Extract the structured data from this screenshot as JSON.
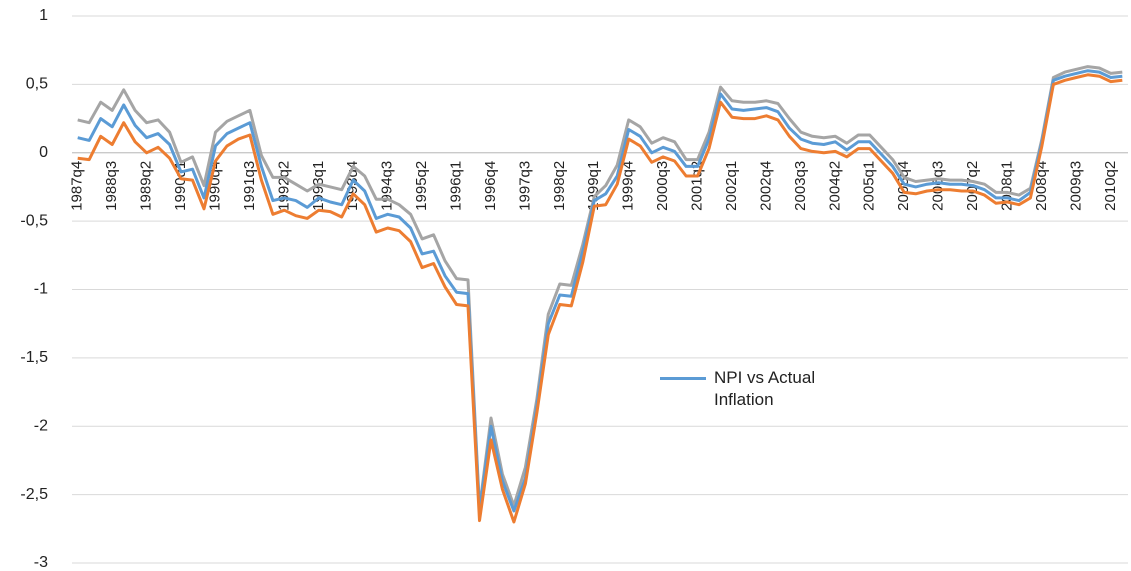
{
  "chart_data": {
    "type": "line",
    "categories": [
      "1987q4",
      null,
      null,
      "1988q3",
      null,
      null,
      "1989q2",
      null,
      null,
      "1990q1",
      null,
      null,
      "1990q4",
      null,
      null,
      "1991q3",
      null,
      null,
      "1992q2",
      null,
      null,
      "1993q1",
      null,
      null,
      "1993q4",
      null,
      null,
      "1994q3",
      null,
      null,
      "1995q2",
      null,
      null,
      "1996q1",
      null,
      null,
      "1996q4",
      null,
      null,
      "1997q3",
      null,
      null,
      "1998q2",
      null,
      null,
      "1999q1",
      null,
      null,
      "1999q4",
      null,
      null,
      "2000q3",
      null,
      null,
      "2001q2",
      null,
      null,
      "2002q1",
      null,
      null,
      "2002q4",
      null,
      null,
      "2003q3",
      null,
      null,
      "2004q2",
      null,
      null,
      "2005q1",
      null,
      null,
      "2005q4",
      null,
      null,
      "2006q3",
      null,
      null,
      "2007q2",
      null,
      null,
      "2008q1",
      null,
      null,
      "2008q4",
      null,
      null,
      "2009q3",
      null,
      null,
      "2010q2",
      null
    ],
    "series": [
      {
        "color": "#a5a5a5",
        "values": [
          0.24,
          0.22,
          0.37,
          0.31,
          0.46,
          0.31,
          0.22,
          0.24,
          0.15,
          -0.07,
          -0.03,
          -0.24,
          0.15,
          0.23,
          0.27,
          0.31,
          -0.02,
          -0.18,
          -0.18,
          -0.23,
          -0.28,
          -0.23,
          -0.25,
          -0.27,
          -0.1,
          -0.17,
          -0.34,
          -0.34,
          -0.38,
          -0.45,
          -0.63,
          -0.6,
          -0.79,
          -0.92,
          -0.93,
          -2.6,
          -1.94,
          -2.35,
          -2.58,
          -2.3,
          -1.8,
          -1.18,
          -0.96,
          -0.97,
          -0.67,
          -0.32,
          -0.24,
          -0.09,
          0.24,
          0.19,
          0.07,
          0.11,
          0.08,
          -0.05,
          -0.05,
          0.15,
          0.48,
          0.38,
          0.37,
          0.37,
          0.38,
          0.36,
          0.25,
          0.15,
          0.12,
          0.11,
          0.12,
          0.07,
          0.13,
          0.13,
          0.04,
          -0.05,
          -0.18,
          -0.21,
          -0.2,
          -0.19,
          -0.2,
          -0.2,
          -0.21,
          -0.23,
          -0.29,
          -0.29,
          -0.31,
          -0.26,
          0.1,
          0.55,
          0.59,
          0.61,
          0.63,
          0.62,
          0.58,
          0.59
        ]
      },
      {
        "name": "NPI vs Actual Inflation",
        "color": "#5b9bd5",
        "values": [
          0.11,
          0.09,
          0.25,
          0.19,
          0.35,
          0.2,
          0.11,
          0.14,
          0.06,
          -0.14,
          -0.12,
          -0.33,
          0.05,
          0.14,
          0.18,
          0.22,
          -0.1,
          -0.35,
          -0.33,
          -0.35,
          -0.4,
          -0.33,
          -0.36,
          -0.38,
          -0.2,
          -0.28,
          -0.48,
          -0.45,
          -0.47,
          -0.55,
          -0.74,
          -0.72,
          -0.9,
          -1.02,
          -1.03,
          -2.62,
          -2.0,
          -2.4,
          -2.62,
          -2.38,
          -1.85,
          -1.25,
          -1.04,
          -1.05,
          -0.72,
          -0.35,
          -0.3,
          -0.17,
          0.17,
          0.12,
          0.0,
          0.04,
          0.01,
          -0.1,
          -0.1,
          0.1,
          0.43,
          0.32,
          0.31,
          0.32,
          0.33,
          0.3,
          0.18,
          0.1,
          0.07,
          0.06,
          0.08,
          0.02,
          0.08,
          0.08,
          -0.01,
          -0.1,
          -0.23,
          -0.25,
          -0.23,
          -0.22,
          -0.23,
          -0.23,
          -0.24,
          -0.27,
          -0.33,
          -0.33,
          -0.35,
          -0.29,
          0.08,
          0.53,
          0.56,
          0.58,
          0.6,
          0.59,
          0.55,
          0.56
        ]
      },
      {
        "color": "#ed7d31",
        "values": [
          -0.04,
          -0.05,
          0.12,
          0.06,
          0.22,
          0.08,
          0.0,
          0.04,
          -0.04,
          -0.19,
          -0.2,
          -0.41,
          -0.06,
          0.05,
          0.1,
          0.13,
          -0.2,
          -0.45,
          -0.42,
          -0.46,
          -0.48,
          -0.42,
          -0.43,
          -0.47,
          -0.3,
          -0.38,
          -0.58,
          -0.55,
          -0.57,
          -0.65,
          -0.84,
          -0.81,
          -0.98,
          -1.11,
          -1.12,
          -2.69,
          -2.1,
          -2.46,
          -2.7,
          -2.42,
          -1.9,
          -1.33,
          -1.11,
          -1.12,
          -0.8,
          -0.39,
          -0.38,
          -0.23,
          0.1,
          0.05,
          -0.07,
          -0.03,
          -0.06,
          -0.17,
          -0.17,
          0.03,
          0.37,
          0.26,
          0.25,
          0.25,
          0.27,
          0.24,
          0.12,
          0.03,
          0.01,
          0.0,
          0.01,
          -0.03,
          0.03,
          0.03,
          -0.06,
          -0.15,
          -0.29,
          -0.3,
          -0.28,
          -0.27,
          -0.27,
          -0.28,
          -0.28,
          -0.31,
          -0.37,
          -0.36,
          -0.38,
          -0.33,
          0.05,
          0.5,
          0.53,
          0.55,
          0.57,
          0.56,
          0.52,
          0.53
        ]
      }
    ],
    "ylim": [
      -3,
      1
    ],
    "yticks": [
      1,
      {
        "value": 0.5,
        "label": "0,5"
      },
      0,
      {
        "value": -0.5,
        "label": "-0,5"
      },
      -1,
      {
        "value": -1.5,
        "label": "-1,5"
      },
      -2,
      {
        "value": -2.5,
        "label": "-2,5"
      },
      -3
    ],
    "grid": true
  }
}
